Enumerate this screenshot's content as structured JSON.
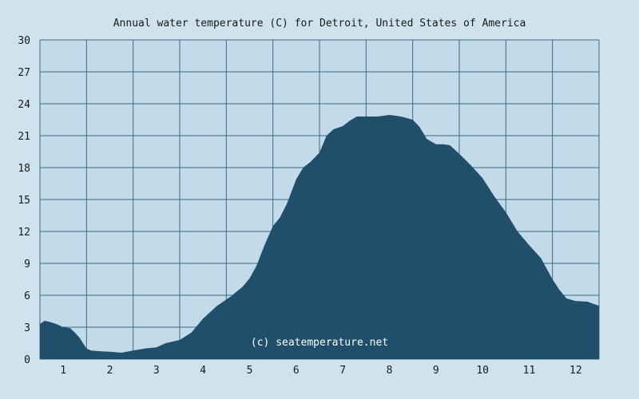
{
  "chart_data": {
    "type": "area",
    "title": "Annual water temperature (C) for Detroit, United States of America",
    "xlabel": "",
    "ylabel": "",
    "ylim": [
      0,
      30
    ],
    "xlim": [
      0.5,
      12.5
    ],
    "yticks": [
      0,
      3,
      6,
      9,
      12,
      15,
      18,
      21,
      24,
      27,
      30
    ],
    "xticks": [
      "1",
      "2",
      "3",
      "4",
      "5",
      "6",
      "7",
      "8",
      "9",
      "10",
      "11",
      "12"
    ],
    "grid": true,
    "fill_color": "#1f4f6b",
    "background_color": "#cfe3ee",
    "plot_background_color": "#c3dbe9",
    "grid_color": "#3d6a84",
    "watermark": "(c) seatemperature.net",
    "series": [
      {
        "x": [
          0.5,
          0.6,
          0.7,
          0.85,
          1.0,
          1.15,
          1.25,
          1.35,
          1.5,
          1.6,
          1.75,
          2.0,
          2.25,
          2.5,
          2.75,
          3.0,
          3.2,
          3.5,
          3.75,
          4.0,
          4.3,
          4.6,
          4.85,
          5.0,
          5.15,
          5.3,
          5.5,
          5.65,
          5.8,
          6.0,
          6.15,
          6.3,
          6.5,
          6.65,
          6.8,
          7.0,
          7.15,
          7.3,
          7.5,
          7.75,
          8.0,
          8.25,
          8.5,
          8.65,
          8.8,
          9.0,
          9.15,
          9.3,
          9.5,
          9.75,
          10.0,
          10.25,
          10.5,
          10.75,
          11.0,
          11.25,
          11.5,
          11.65,
          11.8,
          12.0,
          12.25,
          12.5
        ],
        "y": [
          3.3,
          3.6,
          3.5,
          3.3,
          3.0,
          2.9,
          2.5,
          2.0,
          1.0,
          0.8,
          0.75,
          0.7,
          0.6,
          0.8,
          1.0,
          1.1,
          1.5,
          1.8,
          2.5,
          3.8,
          5.0,
          5.9,
          6.8,
          7.6,
          8.8,
          10.5,
          12.5,
          13.3,
          14.6,
          16.9,
          18.0,
          18.5,
          19.4,
          21.0,
          21.6,
          21.9,
          22.4,
          22.8,
          22.8,
          22.8,
          22.95,
          22.8,
          22.5,
          21.8,
          20.7,
          20.2,
          20.2,
          20.1,
          19.3,
          18.2,
          17.0,
          15.3,
          13.8,
          12.0,
          10.7,
          9.5,
          7.5,
          6.5,
          5.7,
          5.45,
          5.4,
          5.0
        ]
      }
    ]
  }
}
